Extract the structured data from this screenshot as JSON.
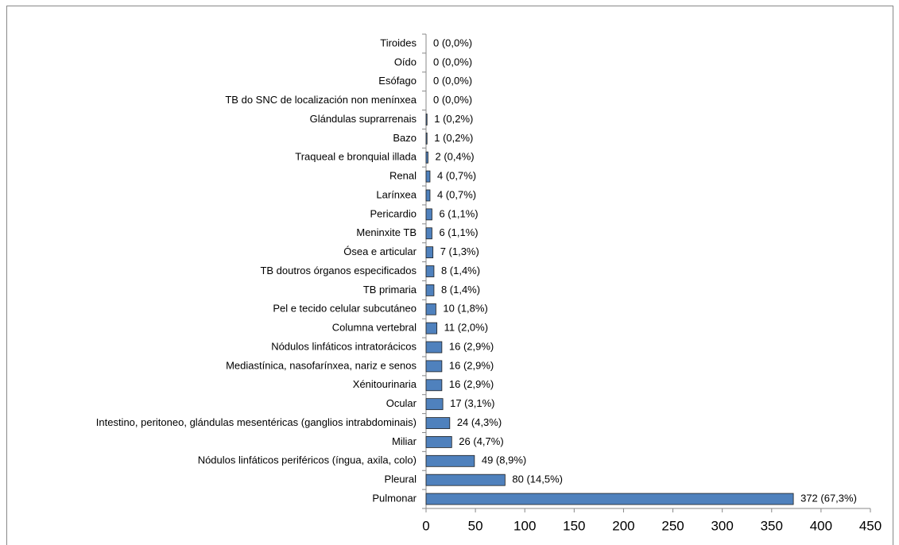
{
  "chart_data": {
    "type": "bar",
    "orientation": "horizontal",
    "categories": [
      "Tiroides",
      "Oído",
      "Esófago",
      "TB do SNC de localización non menínxea",
      "Glándulas suprarrenais",
      "Bazo",
      "Traqueal e bronquial illada",
      "Renal",
      "Larínxea",
      "Pericardio",
      "Meninxite TB",
      "Ósea e articular",
      "TB doutros órganos especificados",
      "TB primaria",
      "Pel e tecido celular subcutáneo",
      "Columna vertebral",
      "Nódulos linfáticos intratorácicos",
      "Mediastínica, nasofarínxea, nariz e senos",
      "Xénitourinaria",
      "Ocular",
      "Intestino, peritoneo, glándulas mesentéricas (ganglios intrabdominais)",
      "Miliar",
      "Nódulos linfáticos periféricos (íngua, axila, colo)",
      "Pleural",
      "Pulmonar"
    ],
    "values": [
      0,
      0,
      0,
      0,
      1,
      1,
      2,
      4,
      4,
      6,
      6,
      7,
      8,
      8,
      10,
      11,
      16,
      16,
      16,
      17,
      24,
      26,
      49,
      80,
      372
    ],
    "value_labels": [
      "0 (0,0%)",
      "0 (0,0%)",
      "0 (0,0%)",
      "0 (0,0%)",
      "1 (0,2%)",
      "1 (0,2%)",
      "2 (0,4%)",
      "4 (0,7%)",
      "4 (0,7%)",
      "6 (1,1%)",
      "6 (1,1%)",
      "7 (1,3%)",
      "8 (1,4%)",
      "8 (1,4%)",
      "10 (1,8%)",
      "11 (2,0%)",
      "16 (2,9%)",
      "16 (2,9%)",
      "16 (2,9%)",
      "17 (3,1%)",
      "24 (4,3%)",
      "26 (4,7%)",
      "49 (8,9%)",
      "80 (14,5%)",
      "372 (67,3%)"
    ],
    "color": "#4f81bd",
    "xlim": [
      0,
      450
    ],
    "xticks": [
      0,
      50,
      100,
      150,
      200,
      250,
      300,
      350,
      400,
      450
    ],
    "grid": false
  }
}
